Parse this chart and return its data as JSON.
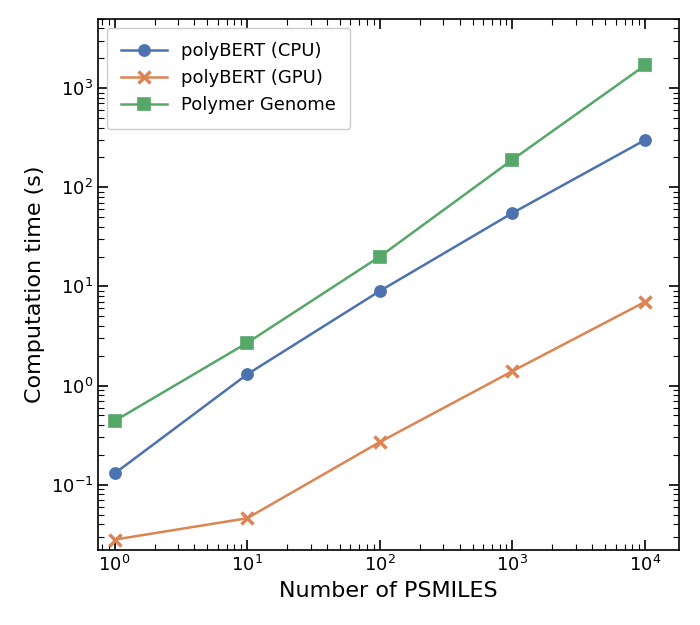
{
  "title": "",
  "xlabel": "Number of PSMILES",
  "ylabel": "Computation time (s)",
  "series": [
    {
      "label": "polyBERT (CPU)",
      "x": [
        1,
        10,
        100,
        1000,
        10000
      ],
      "y": [
        0.13,
        1.3,
        9.0,
        55.0,
        300.0
      ],
      "color": "#4c72b0",
      "marker": "o",
      "markersize": 8
    },
    {
      "label": "polyBERT (GPU)",
      "x": [
        1,
        10,
        100,
        1000,
        10000
      ],
      "y": [
        0.028,
        0.046,
        0.27,
        1.4,
        7.0
      ],
      "color": "#dd8452",
      "marker": "x",
      "markersize": 9
    },
    {
      "label": "Polymer Genome",
      "x": [
        1,
        10,
        100,
        1000,
        10000
      ],
      "y": [
        0.44,
        2.7,
        20.0,
        190.0,
        1700.0
      ],
      "color": "#55a868",
      "marker": "s",
      "markersize": 8
    }
  ],
  "xlim": [
    0.75,
    18000
  ],
  "ylim": [
    0.022,
    5000
  ],
  "legend_loc": "upper left",
  "figsize": [
    7.0,
    6.25
  ],
  "dpi": 100,
  "linewidth": 1.8,
  "tick_direction": "in",
  "xlabel_fontsize": 16,
  "ylabel_fontsize": 16,
  "legend_fontsize": 13,
  "tick_labelsize": 13
}
